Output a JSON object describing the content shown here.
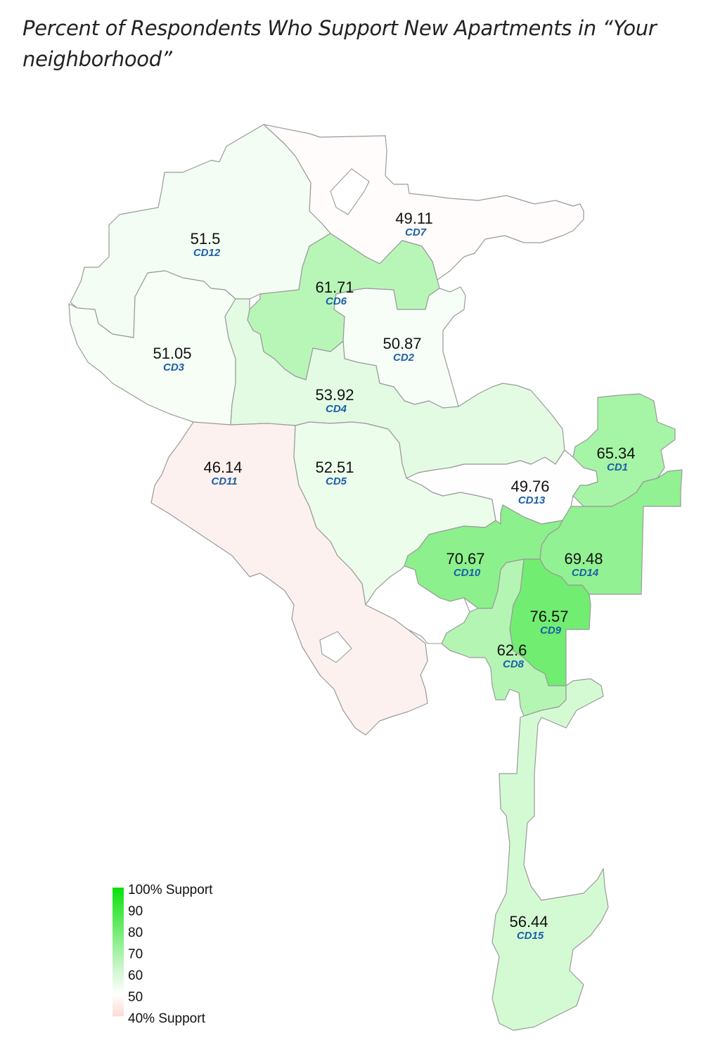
{
  "title": "Percent of Respondents Who Support New Apartments in “Your neighborhood”",
  "districts": [
    {
      "id": "CD12",
      "value": 51.5
    },
    {
      "id": "CD7",
      "value": 49.11
    },
    {
      "id": "CD6",
      "value": 61.71
    },
    {
      "id": "CD3",
      "value": 51.05
    },
    {
      "id": "CD2",
      "value": 50.87
    },
    {
      "id": "CD4",
      "value": 53.92
    },
    {
      "id": "CD11",
      "value": 46.14
    },
    {
      "id": "CD5",
      "value": 52.51
    },
    {
      "id": "CD1",
      "value": 65.34
    },
    {
      "id": "CD13",
      "value": 49.76
    },
    {
      "id": "CD10",
      "value": 70.67
    },
    {
      "id": "CD14",
      "value": 69.48
    },
    {
      "id": "CD9",
      "value": 76.57
    },
    {
      "id": "CD8",
      "value": 62.6
    },
    {
      "id": "CD15",
      "value": 56.44
    }
  ],
  "legend": {
    "labels": [
      "100% Support",
      "90",
      "80",
      "70",
      "60",
      "50",
      "40% Support"
    ],
    "min": 40,
    "mid": 50,
    "max": 100,
    "color_min": "#fadcd6",
    "color_mid": "#ffffff",
    "color_max": "#0ce00c"
  }
}
